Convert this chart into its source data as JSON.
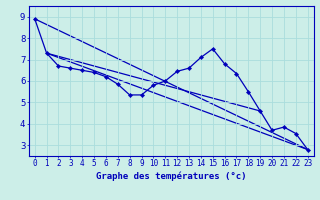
{
  "xlabel": "Graphe des températures (°c)",
  "background_color": "#cceee8",
  "grid_color": "#aadddd",
  "line_color": "#0000bb",
  "xlim": [
    -0.5,
    23.5
  ],
  "ylim": [
    2.5,
    9.5
  ],
  "yticks": [
    3,
    4,
    5,
    6,
    7,
    8,
    9
  ],
  "xticks": [
    0,
    1,
    2,
    3,
    4,
    5,
    6,
    7,
    8,
    9,
    10,
    11,
    12,
    13,
    14,
    15,
    16,
    17,
    18,
    19,
    20,
    21,
    22,
    23
  ],
  "series1_x": [
    0,
    1,
    2,
    3,
    4,
    5,
    6,
    7,
    8,
    9,
    10,
    11,
    12,
    13,
    14,
    15,
    16,
    17,
    18,
    19,
    20,
    21,
    22,
    23
  ],
  "series1_y": [
    8.9,
    7.3,
    6.7,
    6.6,
    6.5,
    6.4,
    6.2,
    5.85,
    5.35,
    5.35,
    5.8,
    6.0,
    6.45,
    6.6,
    7.1,
    7.5,
    6.8,
    6.35,
    5.5,
    4.6,
    3.7,
    3.85,
    3.55,
    2.8
  ],
  "trend1_x": [
    0,
    23
  ],
  "trend1_y": [
    8.9,
    2.8
  ],
  "trend2_x": [
    1,
    19
  ],
  "trend2_y": [
    7.3,
    4.6
  ],
  "trend3_x": [
    1,
    23
  ],
  "trend3_y": [
    7.3,
    2.8
  ],
  "xlabel_fontsize": 6.5,
  "tick_fontsize_x": 5.5,
  "tick_fontsize_y": 6.5
}
